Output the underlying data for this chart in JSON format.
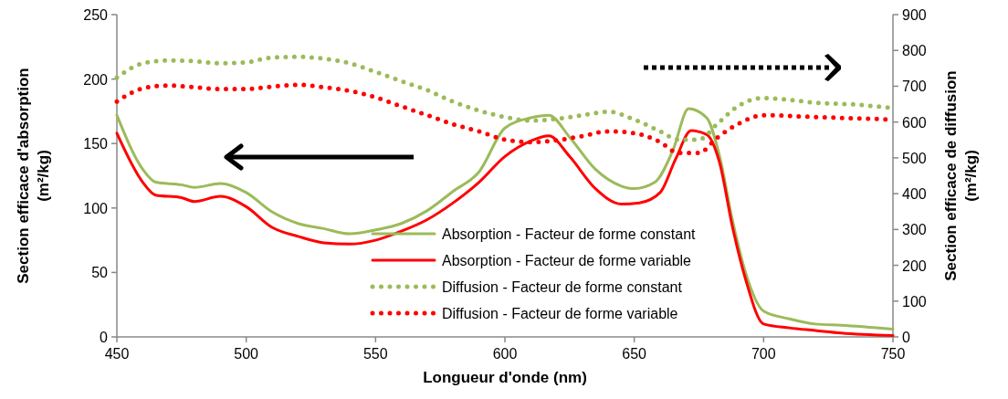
{
  "chart_data": {
    "type": "line",
    "xlabel": "Longueur d'onde (nm)",
    "ylabel": "Section efficace  d'absorption\n(m²/kg)",
    "y2label": "Section efficace  de diffusion\n(m²/kg)",
    "xlim": [
      450,
      750
    ],
    "xticks": [
      450,
      500,
      550,
      600,
      650,
      700,
      750
    ],
    "ylim": [
      0,
      250
    ],
    "yticks": [
      0,
      50,
      100,
      150,
      200,
      250
    ],
    "y2lim": [
      0,
      900
    ],
    "y2ticks": [
      0,
      100,
      200,
      300,
      400,
      500,
      600,
      700,
      800,
      900
    ],
    "grid": false,
    "legend": "bottom",
    "marker": "none",
    "series": [
      {
        "name": "Absorption - Facteur de forme constant",
        "color": "#9bbb59",
        "line_style": "solid",
        "x": [
          450,
          460,
          465,
          475,
          480,
          490,
          500,
          510,
          520,
          530,
          540,
          550,
          560,
          570,
          580,
          590,
          600,
          610,
          617,
          625,
          635,
          645,
          650,
          658,
          665,
          671,
          678,
          683,
          688,
          693,
          700,
          710,
          720,
          730,
          750
        ],
        "values": [
          172,
          130,
          120,
          118,
          116,
          119,
          112,
          97,
          88,
          84,
          80,
          83,
          88,
          98,
          113,
          128,
          162,
          170,
          172,
          155,
          130,
          117,
          115,
          120,
          145,
          177,
          170,
          140,
          90,
          50,
          20,
          14,
          10,
          9,
          6
        ]
      },
      {
        "name": "Absorption - Facteur de forme variable",
        "color": "#ff0000",
        "line_style": "solid",
        "x": [
          450,
          460,
          465,
          475,
          480,
          490,
          500,
          510,
          520,
          530,
          540,
          550,
          560,
          570,
          580,
          590,
          600,
          610,
          617,
          625,
          635,
          645,
          652,
          660,
          666,
          672,
          678,
          683,
          688,
          693,
          700,
          710,
          720,
          730,
          750
        ],
        "values": [
          158,
          120,
          110,
          108,
          105,
          109,
          101,
          85,
          78,
          73,
          72,
          75,
          82,
          91,
          104,
          120,
          140,
          152,
          156,
          140,
          115,
          103,
          104,
          112,
          138,
          160,
          157,
          135,
          85,
          45,
          10,
          7,
          5,
          3,
          1
        ]
      },
      {
        "name": "Diffusion - Facteur de forme constant",
        "color": "#9bbb59",
        "line_style": "dotted",
        "axis": "y2",
        "x": [
          450,
          460,
          470,
          480,
          490,
          500,
          510,
          520,
          530,
          540,
          550,
          560,
          570,
          580,
          590,
          600,
          610,
          620,
          630,
          640,
          650,
          660,
          667,
          675,
          682,
          690,
          700,
          710,
          720,
          735,
          750
        ],
        "values": [
          724,
          764,
          772,
          770,
          764,
          767,
          780,
          782,
          777,
          764,
          740,
          714,
          689,
          657,
          632,
          614,
          604,
          609,
          619,
          629,
          607,
          574,
          551,
          551,
          594,
          644,
          667,
          662,
          654,
          649,
          639
        ]
      },
      {
        "name": "Diffusion - Facteur de forme variable",
        "color": "#ff0000",
        "line_style": "dotted",
        "axis": "y2",
        "x": [
          450,
          460,
          470,
          480,
          490,
          500,
          510,
          520,
          530,
          540,
          550,
          560,
          570,
          580,
          590,
          600,
          610,
          620,
          630,
          640,
          650,
          660,
          667,
          675,
          682,
          690,
          700,
          720,
          750
        ],
        "values": [
          657,
          694,
          702,
          697,
          692,
          692,
          699,
          704,
          697,
          687,
          669,
          644,
          619,
          594,
          574,
          551,
          544,
          549,
          561,
          574,
          569,
          544,
          514,
          514,
          556,
          594,
          619,
          614,
          607
        ]
      }
    ]
  }
}
